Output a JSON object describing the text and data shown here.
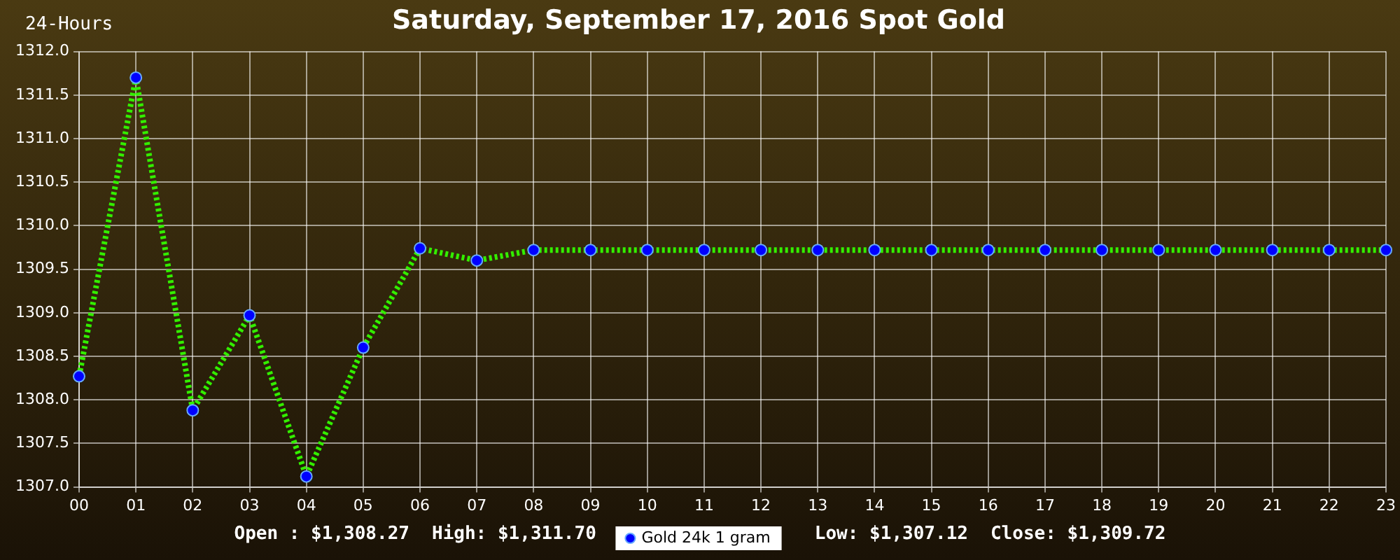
{
  "chart_data": {
    "type": "line",
    "title": "Saturday, September 17, 2016 Spot Gold",
    "annotations": [
      "24-Hours",
      "Open : $1,308.27",
      "High: $1,311.70",
      "Low: $1,307.12",
      "Close: $1,309.72"
    ],
    "categories": [
      "00",
      "01",
      "02",
      "03",
      "04",
      "05",
      "06",
      "07",
      "08",
      "09",
      "10",
      "11",
      "12",
      "13",
      "14",
      "15",
      "16",
      "17",
      "18",
      "19",
      "20",
      "21",
      "22",
      "23"
    ],
    "series": [
      {
        "name": "Gold 24k 1 gram",
        "color": "#33ee00",
        "values": [
          1308.27,
          1311.7,
          1307.88,
          1308.97,
          1307.12,
          1308.6,
          1309.74,
          1309.6,
          1309.72,
          1309.72,
          1309.72,
          1309.72,
          1309.72,
          1309.72,
          1309.72,
          1309.72,
          1309.72,
          1309.72,
          1309.72,
          1309.72,
          1309.72,
          1309.72,
          1309.72,
          1309.72
        ]
      }
    ],
    "ylim": [
      1307,
      1312
    ],
    "yticks": [
      {
        "value": 1307,
        "label": "1307.0"
      },
      {
        "value": 1307.5,
        "label": "1307.5"
      },
      {
        "value": 1308,
        "label": "1308.0"
      },
      {
        "value": 1308.5,
        "label": "1308.5"
      },
      {
        "value": 1309,
        "label": "1309.0"
      },
      {
        "value": 1309.5,
        "label": "1309.5"
      },
      {
        "value": 1310,
        "label": "1310.0"
      },
      {
        "value": 1310.5,
        "label": "1310.5"
      },
      {
        "value": 1311,
        "label": "1311.0"
      },
      {
        "value": 1311.5,
        "label": "1311.5"
      },
      {
        "value": 1312,
        "label": "1312.0"
      }
    ],
    "grid": true,
    "legend": "bottom",
    "marker": "circle",
    "line_style": "dotted"
  }
}
